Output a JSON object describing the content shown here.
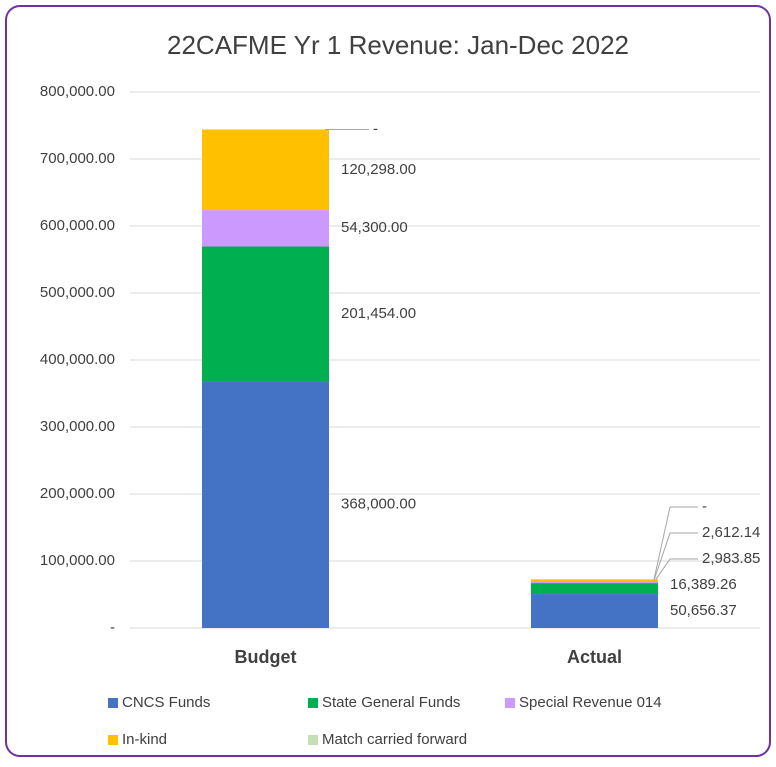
{
  "chart_data": {
    "type": "stacked_bar",
    "title": "22CAFME Yr 1  Revenue: Jan-Dec 2022",
    "categories": [
      "Budget",
      "Actual"
    ],
    "series": [
      {
        "name": "CNCS Funds",
        "color": "#4472c4",
        "values": [
          368000,
          50656.37
        ],
        "value_labels": [
          "368,000.00",
          "50,656.37"
        ]
      },
      {
        "name": "State General Funds",
        "color": "#00b050",
        "values": [
          201454,
          16389.26
        ],
        "value_labels": [
          "201,454.00",
          "16,389.26"
        ]
      },
      {
        "name": "Special Revenue 014",
        "color": "#cc99ff",
        "values": [
          54300,
          2983.85
        ],
        "value_labels": [
          "54,300.00",
          "2,983.85"
        ]
      },
      {
        "name": "In-kind",
        "color": "#ffc000",
        "values": [
          120298,
          2612.14
        ],
        "value_labels": [
          "120,298.00",
          "2,612.14"
        ]
      },
      {
        "name": "Match carried forward",
        "color": "#c5e0b4",
        "values": [
          0,
          0
        ],
        "value_labels": [
          "-",
          "-"
        ]
      }
    ],
    "ylim": [
      0,
      800000
    ],
    "yticks": [
      {
        "value": 0,
        "label": "-"
      },
      {
        "value": 100000,
        "label": "100,000.00"
      },
      {
        "value": 200000,
        "label": "200,000.00"
      },
      {
        "value": 300000,
        "label": "300,000.00"
      },
      {
        "value": 400000,
        "label": "400,000.00"
      },
      {
        "value": 500000,
        "label": "500,000.00"
      },
      {
        "value": 600000,
        "label": "600,000.00"
      },
      {
        "value": 700000,
        "label": "700,000.00"
      },
      {
        "value": 800000,
        "label": "800,000.00"
      }
    ],
    "grid": true,
    "legend": "bottom"
  }
}
